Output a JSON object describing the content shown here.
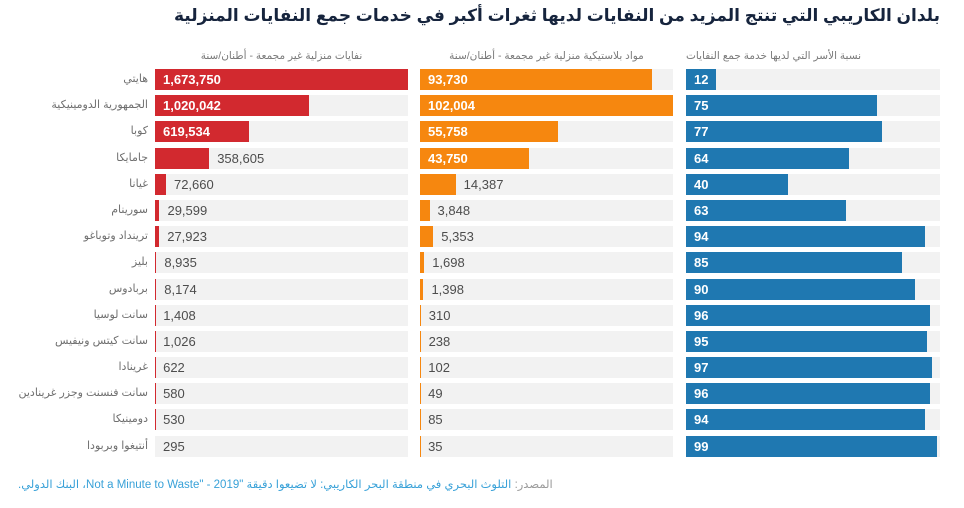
{
  "title": "بلدان الكاريبي التي تنتج المزيد من النفايات لديها ثغرات أكبر في خدمات جمع النفايات المنزلية",
  "chart_data": {
    "type": "bar",
    "orientation": "horizontal",
    "grid": false,
    "legend_position": "column-headers",
    "categories": [
      "هايتي",
      "الجمهورية الدومينيكية",
      "كوبا",
      "جامايكا",
      "غيانا",
      "سورينام",
      "ترينداد وتوباغو",
      "بليز",
      "بربادوس",
      "سانت لوسيا",
      "سانت كيتس ونيفيس",
      "غرينادا",
      "سانت فنسنت وجزر غرينادين",
      "دومينيكا",
      "أنتيغوا وبربودا"
    ],
    "series": [
      {
        "name": "نفايات منزلية غير مجمعة - أطنان/سنة",
        "color": "#d2292f",
        "axis_max": 1673750,
        "values": [
          1673750,
          1020042,
          619534,
          358605,
          72660,
          29599,
          27923,
          8935,
          8174,
          1408,
          1026,
          622,
          580,
          530,
          295
        ],
        "labels": [
          "1,673,750",
          "1,020,042",
          "619,534",
          "358,605",
          "72,660",
          "29,599",
          "27,923",
          "8,935",
          "8,174",
          "1,408",
          "1,026",
          "622",
          "580",
          "530",
          "295"
        ]
      },
      {
        "name": "مواد بلاستيكية منزلية غير مجمعة - أطنان/سنة",
        "color": "#f6870f",
        "axis_max": 102004,
        "values": [
          93730,
          102004,
          55758,
          43750,
          14387,
          3848,
          5353,
          1698,
          1398,
          310,
          238,
          102,
          49,
          85,
          35
        ],
        "labels": [
          "93,730",
          "102,004",
          "55,758",
          "43,750",
          "14,387",
          "3,848",
          "5,353",
          "1,698",
          "1,398",
          "310",
          "238",
          "102",
          "49",
          "85",
          "35"
        ]
      },
      {
        "name": "نسبة الأسر التي لديها خدمة جمع النفايات",
        "color": "#1f78b1",
        "axis_max": 100,
        "values": [
          12,
          75,
          77,
          64,
          40,
          63,
          94,
          85,
          90,
          96,
          95,
          97,
          96,
          94,
          99
        ],
        "labels": [
          "12",
          "75",
          "77",
          "64",
          "40",
          "63",
          "94",
          "85",
          "90",
          "96",
          "95",
          "97",
          "96",
          "94",
          "99"
        ]
      }
    ]
  },
  "source": {
    "prefix": "المصدر:",
    "link_text": "التلوث البحري في منطقة البحر الكاريبي: لا تضيعوا دقيقة \"Not a Minute to Waste\" - 2019، البنك الدولي."
  },
  "colors": {
    "track": "#f2f2f2",
    "title": "#16243d",
    "red": "#d2292f",
    "orange": "#f6870f",
    "blue": "#1f78b1",
    "link": "#38a1d8"
  }
}
